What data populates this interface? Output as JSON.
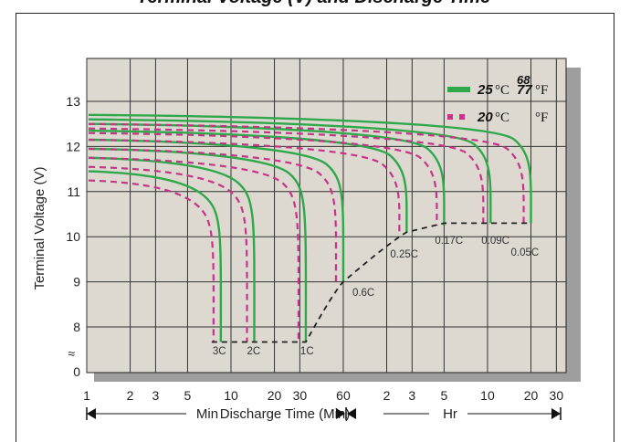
{
  "title": "Terminal Voltage (V) and Discharge Time",
  "chart_data": {
    "type": "line",
    "title": "Terminal Voltage (V) and Discharge Time",
    "ylabel": "Terminal Voltage (V)",
    "xlabel": "Discharge Time (Min)",
    "x_unit_min": "Min",
    "x_unit_hr": "Hr",
    "xlabel_min_prefix": "Min",
    "y_ticks": [
      "0",
      "8",
      "9",
      "10",
      "11",
      "12",
      "13"
    ],
    "y_break_symbol": "≈",
    "x_ticks_min": [
      "1",
      "2",
      "3",
      "5",
      "10",
      "20",
      "30",
      "60"
    ],
    "x_ticks_hr": [
      "2",
      "3",
      "5",
      "10",
      "20",
      "30"
    ],
    "legend": [
      {
        "temp": "25",
        "unit_c": "°C",
        "temp_f": "77",
        "temp_f_alt": "68",
        "unit_f": "°F",
        "style": "solid",
        "color": "#2ea84a"
      },
      {
        "temp": "20",
        "unit_c": "°C",
        "temp_f": "",
        "unit_f": "°F",
        "style": "dashed",
        "color": "#c8338a"
      }
    ],
    "rate_labels": [
      "3C",
      "2C",
      "1C",
      "0.6C",
      "0.25C",
      "0.17C",
      "0.09C",
      "0.05C"
    ],
    "series": [
      {
        "rate": "3C",
        "start_v": 11.45,
        "end_min": 8.5,
        "end_v": 7.75
      },
      {
        "rate": "2C",
        "start_v": 11.75,
        "end_min": 14.5,
        "end_v": 7.75
      },
      {
        "rate": "1C",
        "start_v": 11.95,
        "end_min": 33,
        "end_v": 7.75
      },
      {
        "rate": "0.6C",
        "start_v": 12.15,
        "end_min": 60,
        "end_v": 9.0
      },
      {
        "rate": "0.25C",
        "start_v": 12.35,
        "end_min": 165,
        "end_v": 10.1
      },
      {
        "rate": "0.17C",
        "start_v": 12.5,
        "end_min": 300,
        "end_v": 10.25
      },
      {
        "rate": "0.09C",
        "start_v": 12.6,
        "end_min": 630,
        "end_v": 10.3
      },
      {
        "rate": "0.05C",
        "start_v": 12.7,
        "end_min": 1200,
        "end_v": 10.3
      }
    ],
    "final_voltage_line": {
      "style": "dashed",
      "color": "#222"
    },
    "grid": true,
    "legend_position": "top-right"
  }
}
